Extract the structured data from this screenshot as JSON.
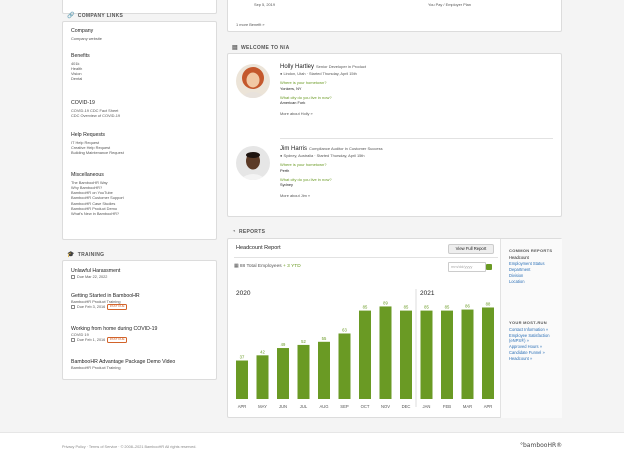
{
  "top_left_fragment": {
    "date": "Sep 5, 2019",
    "more_benefits": "1 more Benefit »"
  },
  "top_right_fragment": {
    "text": "You Pay / Employer Plan"
  },
  "company_links": {
    "title": "COMPANY LINKS",
    "groups": [
      {
        "head": "Company",
        "items": [
          "Company website"
        ]
      },
      {
        "head": "Benefits",
        "items": [
          "401k",
          "Health",
          "Vision",
          "Dental"
        ]
      },
      {
        "head": "COVID-19",
        "items": [
          "COVID-19 CDC Fact Sheet",
          "CDC Overview of COVID-19"
        ]
      },
      {
        "head": "Help Requests",
        "items": [
          "IT Help Request",
          "Creative Help Request",
          "Building Maintenance Request"
        ]
      },
      {
        "head": "Miscellaneous",
        "items": [
          "The BambooHR Way",
          "Why BambooHR?",
          "BambooHR on YouTube",
          "BambooHR Customer Support",
          "BambooHR Case Studies",
          "BambooHR Product Demo",
          "What's New in BambooHR?"
        ]
      }
    ]
  },
  "training": {
    "title": "TRAINING",
    "items": [
      {
        "title": "Unlawful Harassment",
        "sub": "",
        "due": "Due Mar 22, 2022",
        "past_due": ""
      },
      {
        "title": "Getting Started in BambooHR",
        "sub": "BambooHR Product Training",
        "due": "Due Feb 3, 2016",
        "past_due": "PAST DUE"
      },
      {
        "title": "Working from home during COVID-19",
        "sub": "COVID 19",
        "due": "Due Feb 1, 2016",
        "past_due": "PAST DUE"
      },
      {
        "title": "BambooHR Advantage Package Demo Video",
        "sub": "BambooHR Product Training",
        "due": "",
        "past_due": ""
      }
    ]
  },
  "welcome": {
    "title": "WELCOME TO N/A",
    "people": [
      {
        "name": "Holly Hartley",
        "role": "Senior Developer in Product",
        "location": "Lindon, Utah · Started Thursday, April 15th",
        "question": "Where is your hometown?",
        "answer1": "Yonkers, NY",
        "question2": "What city do you live in now?",
        "answer2": "American Fork",
        "more": "More about Holly »"
      },
      {
        "name": "Jim Harris",
        "role": "Compliance Auditor in Customer Success",
        "location": "Sydney, Australia · Started Thursday, April 15th",
        "question": "Where is your hometown?",
        "answer1": "Perth",
        "question2": "What city do you live in now?",
        "answer2": "Sydney",
        "more": "More about Jim »"
      }
    ]
  },
  "reports": {
    "title": "REPORTS",
    "report_name": "Headcount Report",
    "view_full": "View Full Report",
    "total_label": "88 Total Employees",
    "ytd": "+ 3 YTD",
    "date_placeholder": "mm/dd/yyyy",
    "common_reports_head": "COMMON REPORTS",
    "common_reports": [
      "Headcount",
      "Employment Status",
      "Department",
      "Division",
      "Location"
    ],
    "most_run_head": "YOUR MOST-RUN",
    "most_run": [
      "Contact Information »",
      "Employee Satisfaction (eNPS®) »",
      "Approved Hours »",
      "Candidate Funnel »",
      "Headcount »"
    ]
  },
  "chart_data": {
    "type": "bar",
    "year_labels": [
      "2020",
      "2021"
    ],
    "categories": [
      "APR",
      "MAY",
      "JUN",
      "JUL",
      "AUG",
      "SEP",
      "OCT",
      "NOV",
      "DEC",
      "JAN",
      "FEB",
      "MAR",
      "APR"
    ],
    "values": [
      37,
      42,
      49,
      52,
      55,
      63,
      85,
      89,
      85,
      85,
      85,
      86,
      88
    ],
    "ylim": [
      0,
      100
    ],
    "bar_color": "#6a9a24"
  },
  "footer": {
    "text": "Privacy Policy · Terms of Service · © 2008–2021 BambooHR All rights reserved.",
    "logo": "°bambooHR®"
  },
  "colors": {
    "accent": "#6a9a24",
    "link": "#2a6fb6",
    "past_due": "#d2632a"
  }
}
